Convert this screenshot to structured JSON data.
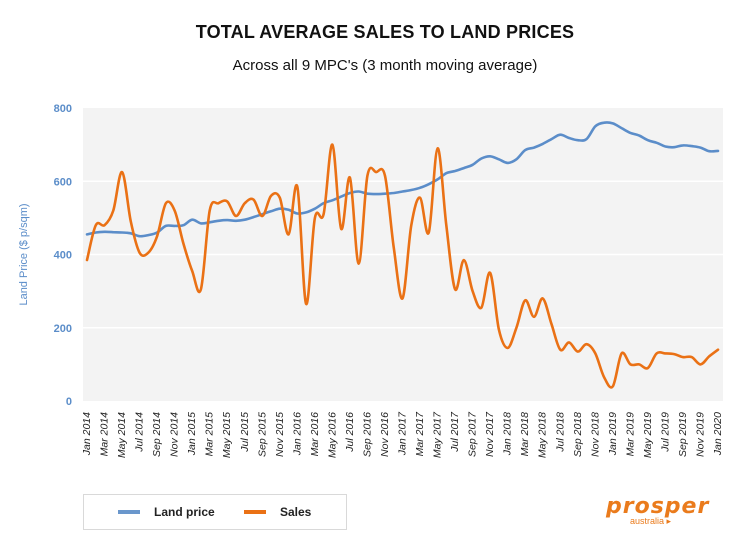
{
  "chart_data": {
    "type": "line",
    "title": "TOTAL AVERAGE SALES TO LAND PRICES",
    "subtitle": "Across all 9 MPC's (3 month moving average)",
    "xlabel": "",
    "ylabel": "Land Price ($ p/sqm)",
    "ylim": [
      0,
      800
    ],
    "yticks": [
      0,
      200,
      400,
      600,
      800
    ],
    "grid": true,
    "legend_position": "bottom-left",
    "x": [
      "Jan 2014",
      "Feb 2014",
      "Mar 2014",
      "Apr 2014",
      "May 2014",
      "Jun 2014",
      "Jul 2014",
      "Aug 2014",
      "Sep 2014",
      "Oct 2014",
      "Nov 2014",
      "Dec 2014",
      "Jan 2015",
      "Feb 2015",
      "Mar 2015",
      "Apr 2015",
      "May 2015",
      "Jun 2015",
      "Jul 2015",
      "Aug 2015",
      "Sep 2015",
      "Oct 2015",
      "Nov 2015",
      "Dec 2015",
      "Jan 2016",
      "Feb 2016",
      "Mar 2016",
      "Apr 2016",
      "May 2016",
      "Jun 2016",
      "Jul 2016",
      "Aug 2016",
      "Sep 2016",
      "Oct 2016",
      "Nov 2016",
      "Dec 2016",
      "Jan 2017",
      "Feb 2017",
      "Mar 2017",
      "Apr 2017",
      "May 2017",
      "Jun 2017",
      "Jul 2017",
      "Aug 2017",
      "Sep 2017",
      "Oct 2017",
      "Nov 2017",
      "Dec 2017",
      "Jan 2018",
      "Feb 2018",
      "Mar 2018",
      "Apr 2018",
      "May 2018",
      "Jun 2018",
      "Jul 2018",
      "Aug 2018",
      "Sep 2018",
      "Oct 2018",
      "Nov 2018",
      "Dec 2018",
      "Jan 2019",
      "Feb 2019",
      "Mar 2019",
      "Apr 2019",
      "May 2019",
      "Jun 2019",
      "Jul 2019",
      "Aug 2019",
      "Sep 2019",
      "Oct 2019",
      "Nov 2019",
      "Dec 2019",
      "Jan 2020"
    ],
    "tick_labels": [
      "Jan 2014",
      "Mar 2014",
      "May 2014",
      "Jul 2014",
      "Sep 2014",
      "Nov 2014",
      "Jan 2015",
      "Mar 2015",
      "May 2015",
      "Jul 2015",
      "Sep 2015",
      "Nov 2015",
      "Jan 2016",
      "Mar 2016",
      "May 2016",
      "Jul 2016",
      "Sep 2016",
      "Nov 2016",
      "Jan 2017",
      "Mar 2017",
      "May 2017",
      "Jul 2017",
      "Sep 2017",
      "Nov 2017",
      "Jan 2018",
      "Mar 2018",
      "May 2018",
      "Jul 2018",
      "Sep 2018",
      "Nov 2018",
      "Jan 2019",
      "Mar 2019",
      "May 2019",
      "Jul 2019",
      "Sep 2019",
      "Nov 2019",
      "Jan 2020"
    ],
    "series": [
      {
        "name": "Land price",
        "color": "#5b8dc9",
        "values": [
          455,
          460,
          462,
          461,
          460,
          458,
          450,
          453,
          460,
          478,
          478,
          480,
          495,
          485,
          488,
          492,
          494,
          492,
          495,
          502,
          510,
          518,
          525,
          522,
          512,
          515,
          525,
          540,
          548,
          558,
          568,
          572,
          566,
          565,
          566,
          568,
          572,
          576,
          582,
          592,
          605,
          622,
          628,
          636,
          645,
          662,
          668,
          660,
          650,
          660,
          685,
          692,
          702,
          715,
          727,
          718,
          712,
          715,
          750,
          760,
          758,
          745,
          732,
          725,
          712,
          705,
          695,
          693,
          698,
          696,
          692,
          682,
          683
        ]
      },
      {
        "name": "Sales",
        "color": "#ea7115",
        "values": [
          385,
          480,
          480,
          520,
          625,
          490,
          405,
          405,
          450,
          540,
          520,
          430,
          355,
          305,
          520,
          540,
          545,
          505,
          540,
          550,
          505,
          560,
          555,
          455,
          585,
          265,
          500,
          510,
          700,
          470,
          610,
          375,
          615,
          625,
          615,
          420,
          280,
          480,
          555,
          460,
          690,
          480,
          305,
          385,
          300,
          255,
          350,
          195,
          145,
          200,
          275,
          230,
          280,
          210,
          140,
          160,
          135,
          155,
          130,
          65,
          40,
          130,
          100,
          100,
          90,
          130,
          130,
          128,
          120,
          120,
          100,
          122,
          140
        ]
      }
    ]
  },
  "legend": {
    "items": [
      {
        "label": "Land price",
        "color": "#5b8dc9"
      },
      {
        "label": "Sales",
        "color": "#ea7115"
      }
    ]
  },
  "logo": {
    "word": "prosper",
    "sub": "australia",
    "color": "#ea7b1c"
  },
  "colors": {
    "axis_text": "#5b8dc9",
    "plot_bg": "#f3f3f3",
    "gridline": "#ffffff"
  }
}
